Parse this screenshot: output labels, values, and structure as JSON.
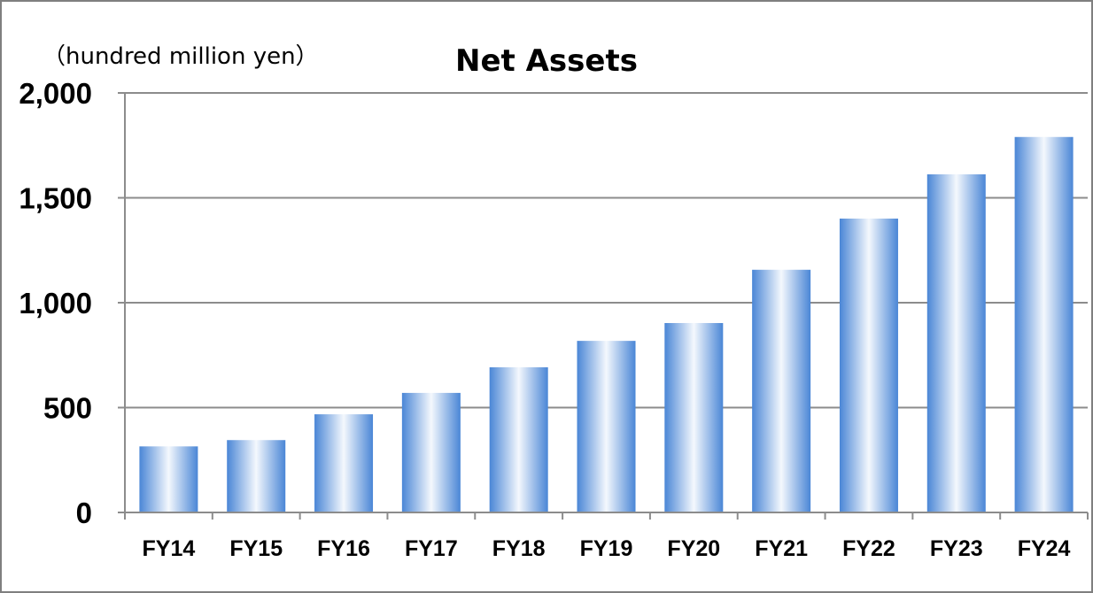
{
  "chart_data": {
    "type": "bar",
    "title": "Net Assets",
    "unit_label": "（hundred million yen）",
    "xlabel": "",
    "ylabel": "",
    "categories": [
      "FY14",
      "FY15",
      "FY16",
      "FY17",
      "FY18",
      "FY19",
      "FY20",
      "FY21",
      "FY22",
      "FY23",
      "FY24"
    ],
    "values": [
      315,
      345,
      468,
      570,
      692,
      818,
      903,
      1157,
      1401,
      1612,
      1790
    ],
    "ylim": [
      0,
      2000
    ],
    "yticks": [
      0,
      500,
      1000,
      1500,
      2000
    ],
    "ytick_labels": [
      "0",
      "500",
      "1,000",
      "1,500",
      "2,000"
    ],
    "grid": true,
    "legend": "none",
    "colors": {
      "bar_edge": "#4a86d6",
      "bar_center": "#f4f8fd",
      "grid": "#8c8c8c",
      "axis": "#8c8c8c",
      "frame": "#7f7f7f"
    }
  }
}
